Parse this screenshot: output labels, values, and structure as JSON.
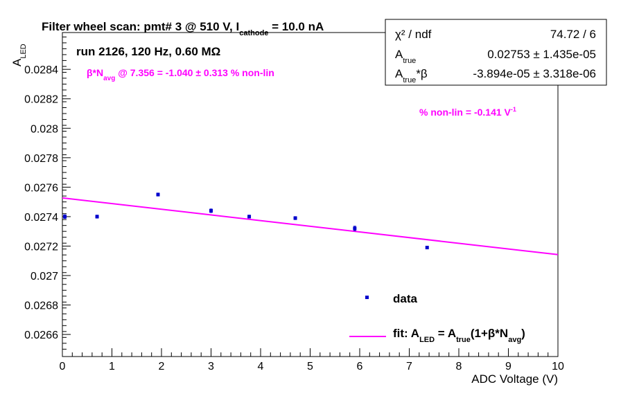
{
  "chart_data": {
    "type": "scatter",
    "title_main": "Filter wheel scan: pmt#   3 @   510 V, I",
    "title_sub": "cathode",
    "title_tail": " = 10.0 nA",
    "run_label": "run 2126, 120 Hz, 0.60 MΩ",
    "xlabel": "ADC Voltage (V)",
    "ylabel_main": "A",
    "ylabel_sub": "LED",
    "xlim": [
      0,
      10
    ],
    "ylim": [
      0.02645,
      0.02865
    ],
    "x_ticks": [
      0,
      1,
      2,
      3,
      4,
      5,
      6,
      7,
      8,
      9,
      10
    ],
    "x_tick_labels": [
      "0",
      "1",
      "2",
      "3",
      "4",
      "5",
      "6",
      "7",
      "8",
      "9",
      "10"
    ],
    "y_ticks": [
      0.0266,
      0.0268,
      0.027,
      0.0272,
      0.0274,
      0.0276,
      0.0278,
      0.028,
      0.0282,
      0.0284
    ],
    "y_tick_labels": [
      "0.0266",
      "0.0268",
      "0.027",
      "0.0272",
      "0.0274",
      "0.0276",
      "0.0278",
      "0.028",
      "0.0282",
      "0.0284"
    ],
    "series": [
      {
        "name": "data",
        "color": "#0000cc",
        "points": [
          {
            "x": 0.05,
            "y": 0.0274,
            "err": 1.2e-05
          },
          {
            "x": 0.7,
            "y": 0.0274,
            "err": 1e-05
          },
          {
            "x": 1.93,
            "y": 0.02755,
            "err": 1e-05
          },
          {
            "x": 3.0,
            "y": 0.02744,
            "err": 1.2e-05
          },
          {
            "x": 3.77,
            "y": 0.0274,
            "err": 1e-05
          },
          {
            "x": 4.7,
            "y": 0.02739,
            "err": 1e-05
          },
          {
            "x": 5.9,
            "y": 0.02732,
            "err": 1.5e-05
          },
          {
            "x": 7.36,
            "y": 0.02719,
            "err": 8e-06
          }
        ]
      },
      {
        "name": "fit",
        "color": "#ff00ff",
        "type": "line",
        "x": [
          0,
          10
        ],
        "y": [
          0.027527,
          0.027142
        ]
      }
    ],
    "annotations": {
      "beta_label_a": "β*N",
      "beta_label_sub": "avg",
      "beta_label_b": " @ 7.356 = -1.040 ± 0.313 % non-lin",
      "nonlin_label": "% non-lin = -0.141 V",
      "nonlin_sup": "-1"
    },
    "stats_box": {
      "rows": [
        {
          "label": "χ² / ndf",
          "value": "74.72 / 6"
        },
        {
          "label_main": "A",
          "label_sub": "true",
          "value": "0.02753 ± 1.435e-05"
        },
        {
          "label_main": "A",
          "label_sub": "true",
          "label_tail": "*β",
          "value": "-3.894e-05 ± 3.318e-06"
        }
      ]
    },
    "legend": {
      "position": "bottom-right",
      "data_label": "data",
      "fit_label_a": "fit: A",
      "fit_sub1": "LED",
      "fit_label_b": " = A",
      "fit_sub2": "true",
      "fit_label_c": "(1+β*N",
      "fit_sub3": "avg",
      "fit_label_d": ")"
    },
    "grid": false
  }
}
